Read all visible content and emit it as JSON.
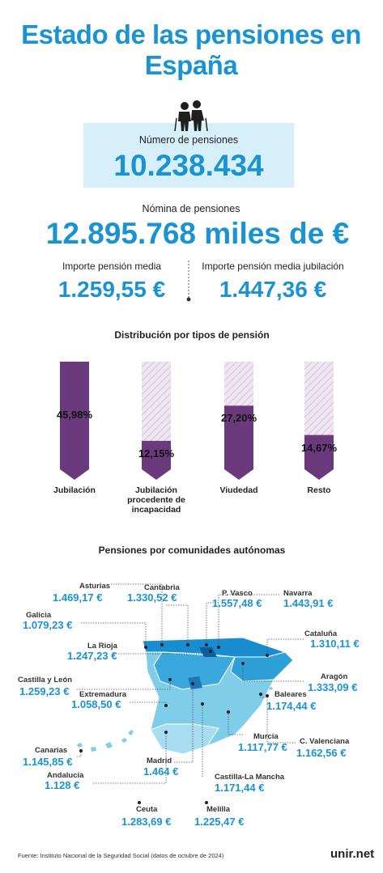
{
  "header": {
    "title": "Estado de las pensiones en España"
  },
  "stats": {
    "count_label": "Número de pensiones",
    "count": "10.238.434",
    "payroll_label": "Nómina de pensiones",
    "payroll": "12.895.768 miles de €",
    "avg_label": "Importe pensión media",
    "avg": "1.259,55 €",
    "avg_ret_label": "Importe pensión media jubilación",
    "avg_ret": "1.447,36 €"
  },
  "chart_data": {
    "type": "bar",
    "title": "Distribución por tipos de pensión",
    "categories": [
      "Jubilación",
      "Jubilación procedente de incapacidad",
      "Viudedad",
      "Resto"
    ],
    "values": [
      45.98,
      12.15,
      27.2,
      14.67
    ],
    "value_labels": [
      "45,98%",
      "12,15%",
      "27,20%",
      "14,67%"
    ],
    "color": "#6b3a7d"
  },
  "map": {
    "title": "Pensiones por comunidades autónomas",
    "regions": [
      {
        "name": "Asturias",
        "value": "1.469,17 €"
      },
      {
        "name": "Cantabria",
        "value": "1.330,52 €"
      },
      {
        "name": "P. Vasco",
        "value": "1.557,48 €"
      },
      {
        "name": "Navarra",
        "value": "1.443,91 €"
      },
      {
        "name": "Galicia",
        "value": "1.079,23 €"
      },
      {
        "name": "La Rioja",
        "value": "1.247,23 €"
      },
      {
        "name": "Cataluña",
        "value": "1.310,11 €"
      },
      {
        "name": "Castilla y León",
        "value": "1.259,23 €"
      },
      {
        "name": "Aragón",
        "value": "1.333,09 €"
      },
      {
        "name": "Extremadura",
        "value": "1.058,50 €"
      },
      {
        "name": "Baleares",
        "value": "1.174,44 €"
      },
      {
        "name": "Canarias",
        "value": "1.145,85 €"
      },
      {
        "name": "Murcia",
        "value": "1.117,77 €"
      },
      {
        "name": "C. Valenciana",
        "value": "1.162,56 €"
      },
      {
        "name": "Andalucía",
        "value": "1.128 €"
      },
      {
        "name": "Madrid",
        "value": "1.464 €"
      },
      {
        "name": "Castilla-La Mancha",
        "value": "1.171,44 €"
      },
      {
        "name": "Ceuta",
        "value": "1.283,69 €"
      },
      {
        "name": "Melilla",
        "value": "1.225,47 €"
      }
    ]
  },
  "footer": {
    "source": "Fuente:  Instituto Nacional de la Seguridad Social (datos de octubre de 2024)",
    "brand": "unir.net"
  }
}
